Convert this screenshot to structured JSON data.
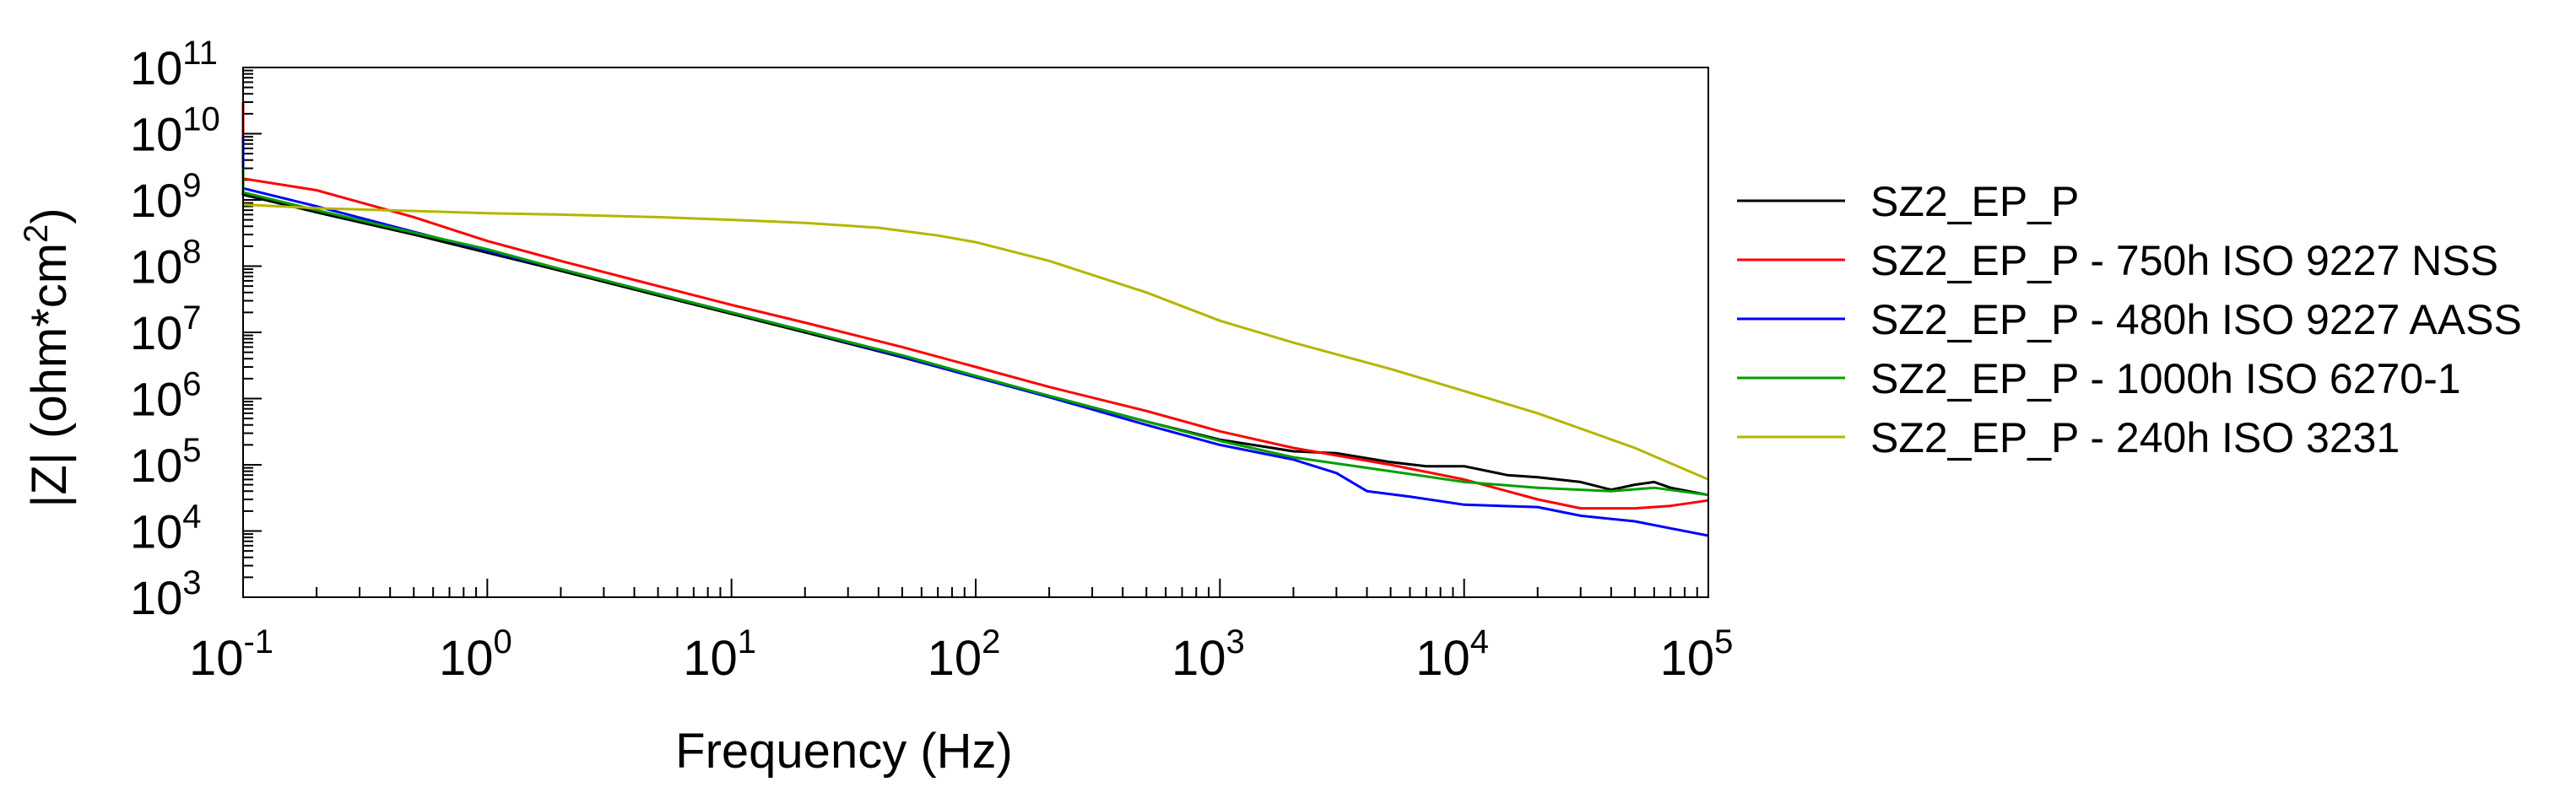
{
  "chart_data": {
    "type": "line",
    "title": "",
    "xlabel": "Frequency (Hz)",
    "ylabel_base": "|Z| (ohm*cm",
    "ylabel_sup": "2",
    "ylabel_close": ")",
    "x_scale": "log",
    "y_scale": "log",
    "xlim": [
      0.1,
      100000
    ],
    "ylim": [
      1000,
      100000000000
    ],
    "x_ticks": [
      {
        "base": "10",
        "exp": "-1",
        "value": 0.1
      },
      {
        "base": "10",
        "exp": "0",
        "value": 1
      },
      {
        "base": "10",
        "exp": "1",
        "value": 10
      },
      {
        "base": "10",
        "exp": "2",
        "value": 100
      },
      {
        "base": "10",
        "exp": "3",
        "value": 1000
      },
      {
        "base": "10",
        "exp": "4",
        "value": 10000
      },
      {
        "base": "10",
        "exp": "5",
        "value": 100000
      }
    ],
    "y_ticks": [
      {
        "base": "10",
        "exp": "3",
        "value": 1000
      },
      {
        "base": "10",
        "exp": "4",
        "value": 10000
      },
      {
        "base": "10",
        "exp": "5",
        "value": 100000
      },
      {
        "base": "10",
        "exp": "6",
        "value": 1000000
      },
      {
        "base": "10",
        "exp": "7",
        "value": 10000000
      },
      {
        "base": "10",
        "exp": "8",
        "value": 100000000
      },
      {
        "base": "10",
        "exp": "9",
        "value": 1000000000
      },
      {
        "base": "10",
        "exp": "10",
        "value": 10000000000
      },
      {
        "base": "10",
        "exp": "11",
        "value": 100000000000
      }
    ],
    "grid": false,
    "legend_position": "right",
    "series": [
      {
        "name": "SZ2_EP_P",
        "color": "#000000",
        "points": [
          [
            0.1,
            1600000000.0
          ],
          [
            0.1,
            1200000000.0
          ],
          [
            0.2,
            650000000.0
          ],
          [
            0.5,
            300000000.0
          ],
          [
            1,
            160000000.0
          ],
          [
            2,
            85000000.0
          ],
          [
            5,
            36000000.0
          ],
          [
            10,
            19000000.0
          ],
          [
            20,
            10000000.0
          ],
          [
            50,
            4200000.0
          ],
          [
            100,
            2100000.0
          ],
          [
            200,
            1100000.0
          ],
          [
            500,
            450000.0
          ],
          [
            1000,
            240000.0
          ],
          [
            2000,
            160000.0
          ],
          [
            3000,
            150000.0
          ],
          [
            5000,
            110000.0
          ],
          [
            7000,
            95000.0
          ],
          [
            10000,
            95000.0
          ],
          [
            15000,
            70000.0
          ],
          [
            20000,
            65000.0
          ],
          [
            30000,
            55000.0
          ],
          [
            40000,
            42000.0
          ],
          [
            50000,
            50000.0
          ],
          [
            60000,
            55000.0
          ],
          [
            70000,
            45000.0
          ],
          [
            100000,
            35000.0
          ]
        ]
      },
      {
        "name": "SZ2_EP_P - 750h ISO 9227 NSS",
        "color": "#ff0000",
        "points": [
          [
            0.1,
            30000000000.0
          ],
          [
            0.1,
            2100000000.0
          ],
          [
            0.2,
            1400000000.0
          ],
          [
            0.5,
            550000000.0
          ],
          [
            1,
            240000000.0
          ],
          [
            2,
            120000000.0
          ],
          [
            5,
            50000000.0
          ],
          [
            10,
            26000000.0
          ],
          [
            20,
            14000000.0
          ],
          [
            50,
            6000000.0
          ],
          [
            100,
            3000000.0
          ],
          [
            200,
            1500000.0
          ],
          [
            500,
            650000.0
          ],
          [
            1000,
            320000.0
          ],
          [
            2000,
            180000.0
          ],
          [
            5000,
            100000.0
          ],
          [
            10000,
            60000.0
          ],
          [
            20000,
            30000.0
          ],
          [
            30000,
            22000.0
          ],
          [
            50000,
            22000.0
          ],
          [
            70000,
            24000.0
          ],
          [
            100000,
            29000.0
          ]
        ]
      },
      {
        "name": "SZ2_EP_P - 480h ISO 9227 AASS",
        "color": "#0000ff",
        "points": [
          [
            0.1,
            9000000000.0
          ],
          [
            0.1,
            1500000000.0
          ],
          [
            0.2,
            800000000.0
          ],
          [
            0.5,
            330000000.0
          ],
          [
            1,
            170000000.0
          ],
          [
            2,
            90000000.0
          ],
          [
            5,
            38000000.0
          ],
          [
            10,
            20000000.0
          ],
          [
            20,
            10500000.0
          ],
          [
            50,
            4300000.0
          ],
          [
            100,
            2100000.0
          ],
          [
            200,
            1050000.0
          ],
          [
            500,
            400000.0
          ],
          [
            1000,
            200000.0
          ],
          [
            2000,
            120000.0
          ],
          [
            3000,
            75000.0
          ],
          [
            4000,
            40000.0
          ],
          [
            6000,
            33000.0
          ],
          [
            10000,
            25000.0
          ],
          [
            20000,
            23000.0
          ],
          [
            30000,
            17000.0
          ],
          [
            50000,
            14000.0
          ],
          [
            70000,
            11000.0
          ],
          [
            100000,
            8500.0
          ]
        ]
      },
      {
        "name": "SZ2_EP_P - 1000h ISO 6270-1",
        "color": "#00a000",
        "points": [
          [
            0.1,
            3000000000.0
          ],
          [
            0.1,
            1300000000.0
          ],
          [
            0.2,
            700000000.0
          ],
          [
            0.5,
            320000000.0
          ],
          [
            1,
            180000000.0
          ],
          [
            2,
            90000000.0
          ],
          [
            5,
            38000000.0
          ],
          [
            10,
            20000000.0
          ],
          [
            20,
            10500000.0
          ],
          [
            50,
            4500000.0
          ],
          [
            100,
            2200000.0
          ],
          [
            200,
            1100000.0
          ],
          [
            500,
            450000.0
          ],
          [
            1000,
            230000.0
          ],
          [
            2000,
            130000.0
          ],
          [
            5000,
            80000.0
          ],
          [
            10000,
            55000.0
          ],
          [
            20000,
            45000.0
          ],
          [
            40000,
            40000.0
          ],
          [
            60000,
            45000.0
          ],
          [
            100000,
            35000.0
          ]
        ]
      },
      {
        "name": "SZ2_EP_P - 240h ISO 3231",
        "color": "#b5b500",
        "points": [
          [
            0.1,
            850000000.0
          ],
          [
            0.2,
            750000000.0
          ],
          [
            0.5,
            680000000.0
          ],
          [
            1,
            630000000.0
          ],
          [
            2,
            600000000.0
          ],
          [
            5,
            550000000.0
          ],
          [
            10,
            500000000.0
          ],
          [
            20,
            450000000.0
          ],
          [
            40,
            380000000.0
          ],
          [
            70,
            290000000.0
          ],
          [
            100,
            230000000.0
          ],
          [
            200,
            120000000.0
          ],
          [
            500,
            40000000.0
          ],
          [
            1000,
            15000000.0
          ],
          [
            2000,
            7000000.0
          ],
          [
            5000,
            2800000.0
          ],
          [
            10000,
            1300000.0
          ],
          [
            20000,
            600000.0
          ],
          [
            50000,
            180000.0
          ],
          [
            100000,
            60000.0
          ]
        ]
      }
    ]
  }
}
